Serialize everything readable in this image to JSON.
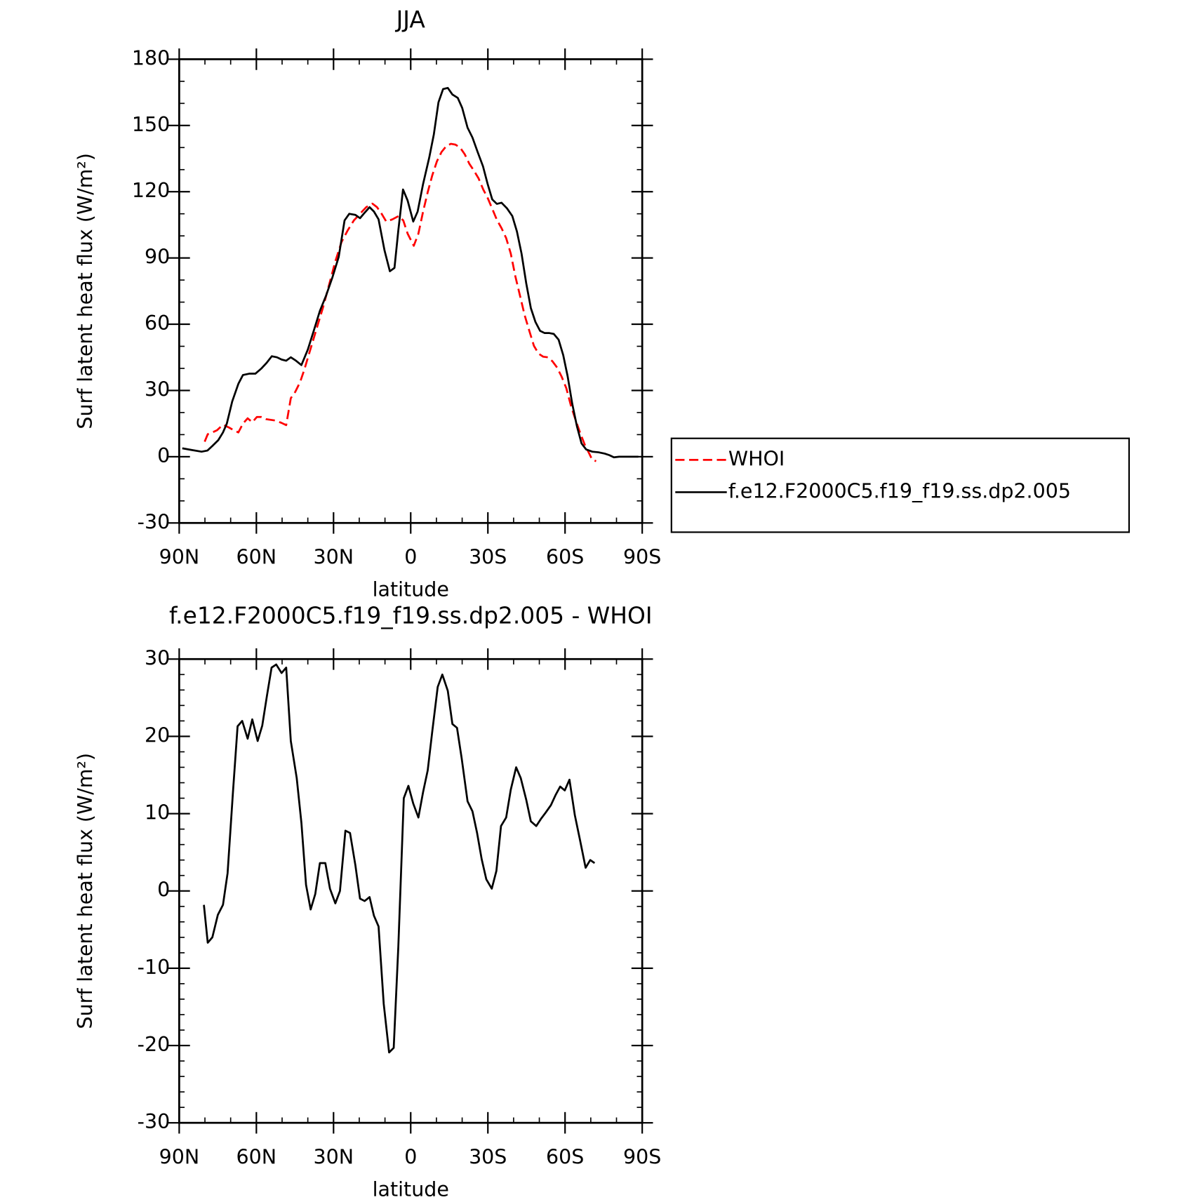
{
  "chart_data": [
    {
      "type": "line",
      "title": "JJA",
      "xlabel": "latitude",
      "ylabel": "Surf latent heat flux (W/m²)",
      "xlim": [
        90,
        -90
      ],
      "xticks": [
        {
          "value": 90,
          "label": "90N"
        },
        {
          "value": 60,
          "label": "60N"
        },
        {
          "value": 30,
          "label": "30N"
        },
        0,
        {
          "value": -30,
          "label": "30S"
        },
        {
          "value": -60,
          "label": "60S"
        },
        {
          "value": -90,
          "label": "90S"
        }
      ],
      "ylim": [
        -30,
        180
      ],
      "yticks": [
        -30,
        0,
        30,
        60,
        90,
        120,
        150,
        180
      ],
      "legend": "right",
      "series": [
        {
          "name": "WHOI",
          "color": "#ff0000",
          "style": "dashed",
          "x": [
            80.1,
            78.9,
            77.1,
            75.3,
            73,
            70.6,
            68.8,
            67,
            65.2,
            63.4,
            61.6,
            59.8,
            58,
            56.2,
            52.6,
            50.2,
            48.4,
            46.6,
            44.9,
            43,
            41.3,
            39.5,
            37.7,
            35.9,
            34.1,
            31.7,
            29.3,
            26.9,
            24.5,
            22.1,
            19.7,
            17.3,
            14.9,
            13.1,
            11.3,
            9.5,
            7.1,
            4.7,
            2.9,
            1.2,
            -1.2,
            -3,
            -4.8,
            -6.6,
            -8.4,
            -10.2,
            -12,
            -13.8,
            -15.6,
            -17.4,
            -19.2,
            -21,
            -22.8,
            -24.6,
            -26.4,
            -28.2,
            -30,
            -31.7,
            -33.5,
            -35.3,
            -37.1,
            -38.9,
            -40.7,
            -42.5,
            -44.3,
            -46.1,
            -47.9,
            -49.7,
            -51.5,
            -53.3,
            -55.1,
            -56.9,
            -58.7,
            -60.5,
            -62.3,
            -64,
            -65.8,
            -67.6,
            -69.4,
            -70.6,
            -72.1
          ],
          "values": [
            6.8,
            10.2,
            11,
            12,
            14.5,
            13.2,
            12,
            11,
            15,
            17.4,
            15.6,
            18,
            18,
            17,
            16.4,
            15.3,
            14.3,
            26.5,
            29.3,
            33.8,
            39.7,
            46.7,
            53.6,
            60.6,
            67.6,
            78,
            88.5,
            97.2,
            102.5,
            107,
            110,
            113,
            114.6,
            113,
            110,
            106.5,
            107.5,
            109,
            107,
            101,
            95.5,
            101,
            111,
            119.8,
            127.5,
            133.8,
            138,
            140.6,
            141.7,
            141.3,
            140,
            137,
            132.6,
            129.5,
            126,
            121,
            117,
            112.3,
            107.3,
            103.5,
            99,
            92,
            81.6,
            72.9,
            64,
            57,
            50.2,
            46.7,
            45.3,
            45,
            43.2,
            40.4,
            36.2,
            31,
            23,
            17,
            11,
            5.6,
            1.4,
            -1.4,
            -2
          ]
        },
        {
          "name": "f.e12.F2000C5.f19_f19.ss.dp2.005",
          "color": "#000000",
          "style": "solid",
          "x": [
            88.8,
            85,
            81.3,
            79,
            77,
            74.8,
            73,
            71.5,
            69.4,
            67,
            65.2,
            62.8,
            60.4,
            58,
            56,
            54,
            52,
            50.2,
            48.4,
            46.6,
            44.6,
            42.5,
            40,
            37.7,
            35.3,
            32.9,
            30.5,
            28,
            25.7,
            23.9,
            21.5,
            19.7,
            17.9,
            16,
            14.3,
            12.5,
            10.2,
            8.1,
            6.3,
            4.8,
            3,
            1.2,
            -1,
            -2.7,
            -4.8,
            -7.2,
            -9,
            -10.8,
            -12.6,
            -14.4,
            -16.2,
            -18.3,
            -20,
            -22.1,
            -24,
            -26,
            -28.1,
            -29.9,
            -31.7,
            -33.5,
            -35.3,
            -37.4,
            -39.5,
            -41.3,
            -43.1,
            -44.9,
            -46.7,
            -48.5,
            -50.3,
            -52.1,
            -53.9,
            -55.6,
            -57.5,
            -59.3,
            -61,
            -62.8,
            -64.6,
            -66.4,
            -68.2,
            -70.6,
            -73,
            -75.4,
            -77.2,
            -79,
            -81,
            -84,
            -88.5
          ],
          "values": [
            3.8,
            3,
            2.3,
            2.8,
            5,
            7.5,
            11,
            15,
            25,
            33,
            37,
            37.6,
            37.6,
            40,
            42.5,
            45.5,
            45,
            44,
            43.5,
            45,
            43.5,
            41.5,
            48.5,
            57,
            66,
            73,
            81,
            90.5,
            107,
            110,
            109.5,
            108,
            110.5,
            113,
            111,
            107.5,
            93.5,
            84,
            85.5,
            102.5,
            121,
            116,
            106.5,
            111,
            123.5,
            135.5,
            146,
            160.5,
            166.5,
            167,
            164,
            162.5,
            158,
            149,
            144.5,
            138,
            131.5,
            123.5,
            116.5,
            114.5,
            115,
            112.5,
            109,
            102,
            92,
            78.5,
            67.3,
            61,
            57,
            56,
            56,
            55.6,
            53,
            46,
            36.5,
            24,
            13.8,
            6,
            3.3,
            2.3,
            2,
            1.4,
            0.7,
            -0.3,
            0,
            0,
            0
          ]
        }
      ]
    },
    {
      "type": "line",
      "title": "f.e12.F2000C5.f19_f19.ss.dp2.005 - WHOI",
      "xlabel": "latitude",
      "ylabel": "Surf latent heat flux (W/m²)",
      "xlim": [
        90,
        -90
      ],
      "xticks": [
        {
          "value": 90,
          "label": "90N"
        },
        {
          "value": 60,
          "label": "60N"
        },
        {
          "value": 30,
          "label": "30N"
        },
        0,
        {
          "value": -30,
          "label": "30S"
        },
        {
          "value": -60,
          "label": "60S"
        },
        {
          "value": -90,
          "label": "90S"
        }
      ],
      "ylim": [
        -30,
        30
      ],
      "yticks": [
        -30,
        -20,
        -10,
        0,
        10,
        20,
        30
      ],
      "color": "#000000",
      "x": [
        80.4,
        78.9,
        77.1,
        75,
        73,
        71.2,
        69.1,
        67.3,
        65.5,
        63.4,
        61.6,
        59.5,
        57.7,
        55.9,
        54.1,
        52.3,
        50.2,
        48.4,
        46.6,
        44.3,
        42.5,
        40.7,
        38.9,
        37.1,
        35.3,
        33.2,
        31.4,
        29.3,
        27.5,
        25.4,
        23.6,
        21.5,
        19.7,
        17.9,
        16,
        14.3,
        12.5,
        10.5,
        8.4,
        6.6,
        4.8,
        2.7,
        0.9,
        -1,
        -3,
        -4.8,
        -6.6,
        -8.4,
        -10.5,
        -12.3,
        -14.4,
        -16.2,
        -18,
        -19.8,
        -22.1,
        -24,
        -25.8,
        -27.6,
        -29.4,
        -31.5,
        -33.3,
        -35.1,
        -37.1,
        -38.9,
        -41,
        -42.8,
        -44.9,
        -46.7,
        -48.8,
        -50.6,
        -52.4,
        -54.5,
        -56.3,
        -58.1,
        -59.9,
        -61.7,
        -63.8,
        -65.8,
        -68,
        -69.8,
        -71.5
      ],
      "values": [
        -1.8,
        -6.7,
        -6,
        -3.1,
        -1.8,
        2.3,
        12.8,
        21.3,
        22,
        19.7,
        22.2,
        19.4,
        21.4,
        25.2,
        28.9,
        29.3,
        28.2,
        28.9,
        19.4,
        14.6,
        8.8,
        0.8,
        -2.4,
        -0.4,
        3.6,
        3.6,
        0.3,
        -1.6,
        0,
        7.8,
        7.5,
        3.3,
        -1,
        -1.3,
        -0.8,
        -3.2,
        -4.6,
        -14.6,
        -20.9,
        -20.3,
        -7.2,
        12,
        13.6,
        11.3,
        9.5,
        12.8,
        15.6,
        20.7,
        26.4,
        28,
        25.9,
        21.6,
        21.1,
        17.2,
        11.6,
        10.3,
        7.5,
        4.1,
        1.5,
        0.3,
        2.6,
        8.4,
        9.5,
        13.1,
        16,
        14.6,
        11.8,
        9,
        8.4,
        9.3,
        10.1,
        11.1,
        12.4,
        13.5,
        13,
        14.4,
        9.8,
        6.6,
        3,
        4,
        3.6
      ]
    }
  ]
}
